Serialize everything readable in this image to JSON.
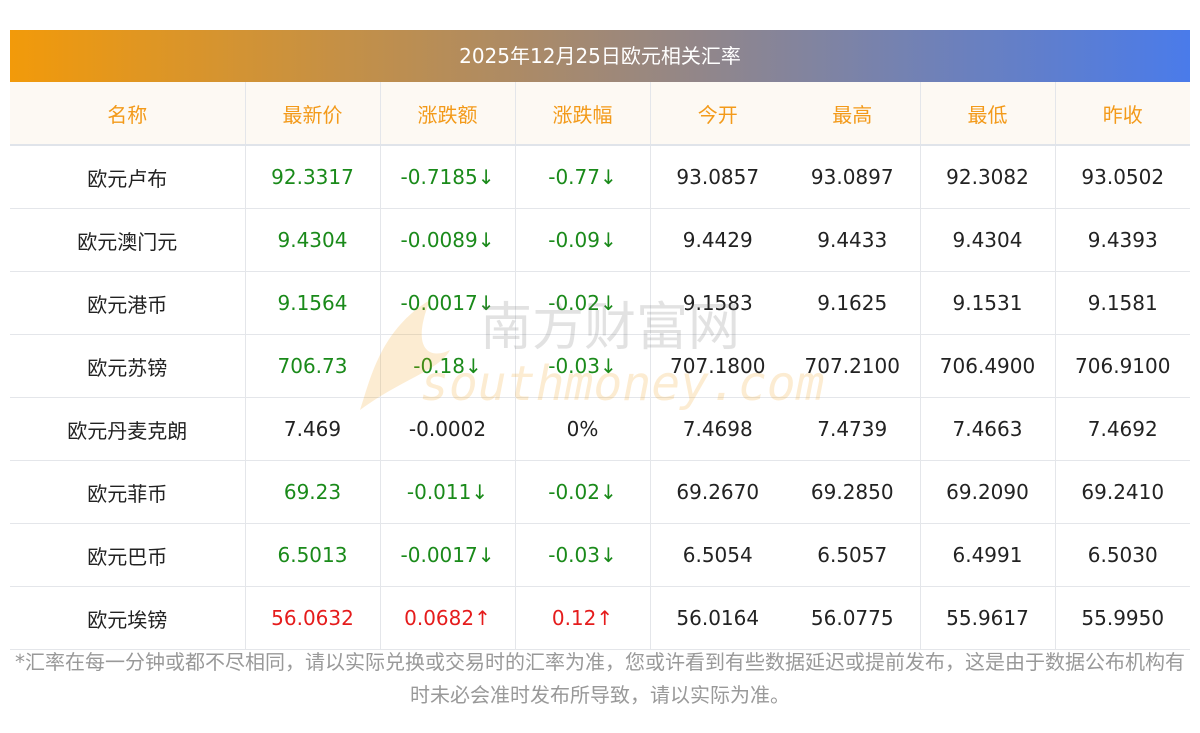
{
  "title": "2025年12月25日欧元相关汇率",
  "headers": [
    "名称",
    "最新价",
    "涨跌额",
    "涨跌幅",
    "今开",
    "最高",
    "最低",
    "昨收"
  ],
  "rows": [
    {
      "name": "欧元卢布",
      "cells": [
        "92.3317",
        "-0.7185↓",
        "-0.77↓",
        "93.0857",
        "93.0897",
        "92.3082",
        "93.0502"
      ],
      "trend": "down"
    },
    {
      "name": "欧元澳门元",
      "cells": [
        "9.4304",
        "-0.0089↓",
        "-0.09↓",
        "9.4429",
        "9.4433",
        "9.4304",
        "9.4393"
      ],
      "trend": "down"
    },
    {
      "name": "欧元港币",
      "cells": [
        "9.1564",
        "-0.0017↓",
        "-0.02↓",
        "9.1583",
        "9.1625",
        "9.1531",
        "9.1581"
      ],
      "trend": "down"
    },
    {
      "name": "欧元苏镑",
      "cells": [
        "706.73",
        "-0.18↓",
        "-0.03↓",
        "707.1800",
        "707.2100",
        "706.4900",
        "706.9100"
      ],
      "trend": "down"
    },
    {
      "name": "欧元丹麦克朗",
      "cells": [
        "7.469",
        "-0.0002",
        "0%",
        "7.4698",
        "7.4739",
        "7.4663",
        "7.4692"
      ],
      "trend": "flat"
    },
    {
      "name": "欧元菲币",
      "cells": [
        "69.23",
        "-0.011↓",
        "-0.02↓",
        "69.2670",
        "69.2850",
        "69.2090",
        "69.2410"
      ],
      "trend": "down"
    },
    {
      "name": "欧元巴币",
      "cells": [
        "6.5013",
        "-0.0017↓",
        "-0.03↓",
        "6.5054",
        "6.5057",
        "6.4991",
        "6.5030"
      ],
      "trend": "down"
    },
    {
      "name": "欧元埃镑",
      "cells": [
        "56.0632",
        "0.0682↑",
        "0.12↑",
        "56.0164",
        "56.0775",
        "55.9617",
        "55.9950"
      ],
      "trend": "up"
    }
  ],
  "watermark": {
    "cn": "南方财富网",
    "en": "southmoney.com"
  },
  "note": "*汇率在每一分钟或都不尽相同，请以实际兑换或交易时的汇率为准，您或许看到有些数据延迟或提前发布，这是由于数据公布机构有时未必会准时发布所导致，请以实际为准。"
}
